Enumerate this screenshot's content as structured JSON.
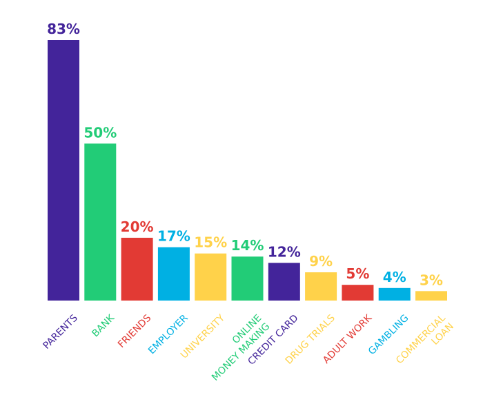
{
  "chart_data": {
    "type": "bar",
    "title": "",
    "xlabel": "",
    "ylabel": "",
    "ylim": [
      0,
      83
    ],
    "grid": false,
    "legend": "none",
    "value_suffix": "%",
    "categories": [
      "PARENTS",
      "BANK",
      "FRIENDS",
      "EMPLOYER",
      "UNIVERSITY",
      "ONLINE MONEY MAKING",
      "CREDIT CARD",
      "DRUG TRIALS",
      "ADULT WORK",
      "GAMBLING",
      "COMMERCIAL LOAN"
    ],
    "category_lines": [
      [
        "PARENTS"
      ],
      [
        "BANK"
      ],
      [
        "FRIENDS"
      ],
      [
        "EMPLOYER"
      ],
      [
        "UNIVERSITY"
      ],
      [
        "ONLINE",
        "MONEY MAKING"
      ],
      [
        "CREDIT CARD"
      ],
      [
        "DRUG TRIALS"
      ],
      [
        "ADULT WORK"
      ],
      [
        "GAMBLING"
      ],
      [
        "COMMERCIAL",
        "LOAN"
      ]
    ],
    "values": [
      83,
      50,
      20,
      17,
      15,
      14,
      12,
      9,
      5,
      4,
      3
    ],
    "colors": [
      "#43249a",
      "#22cc77",
      "#e23a34",
      "#00b0e3",
      "#ffd24a",
      "#22cc77",
      "#43249a",
      "#ffd24a",
      "#e23a34",
      "#00b0e3",
      "#ffd24a"
    ]
  }
}
